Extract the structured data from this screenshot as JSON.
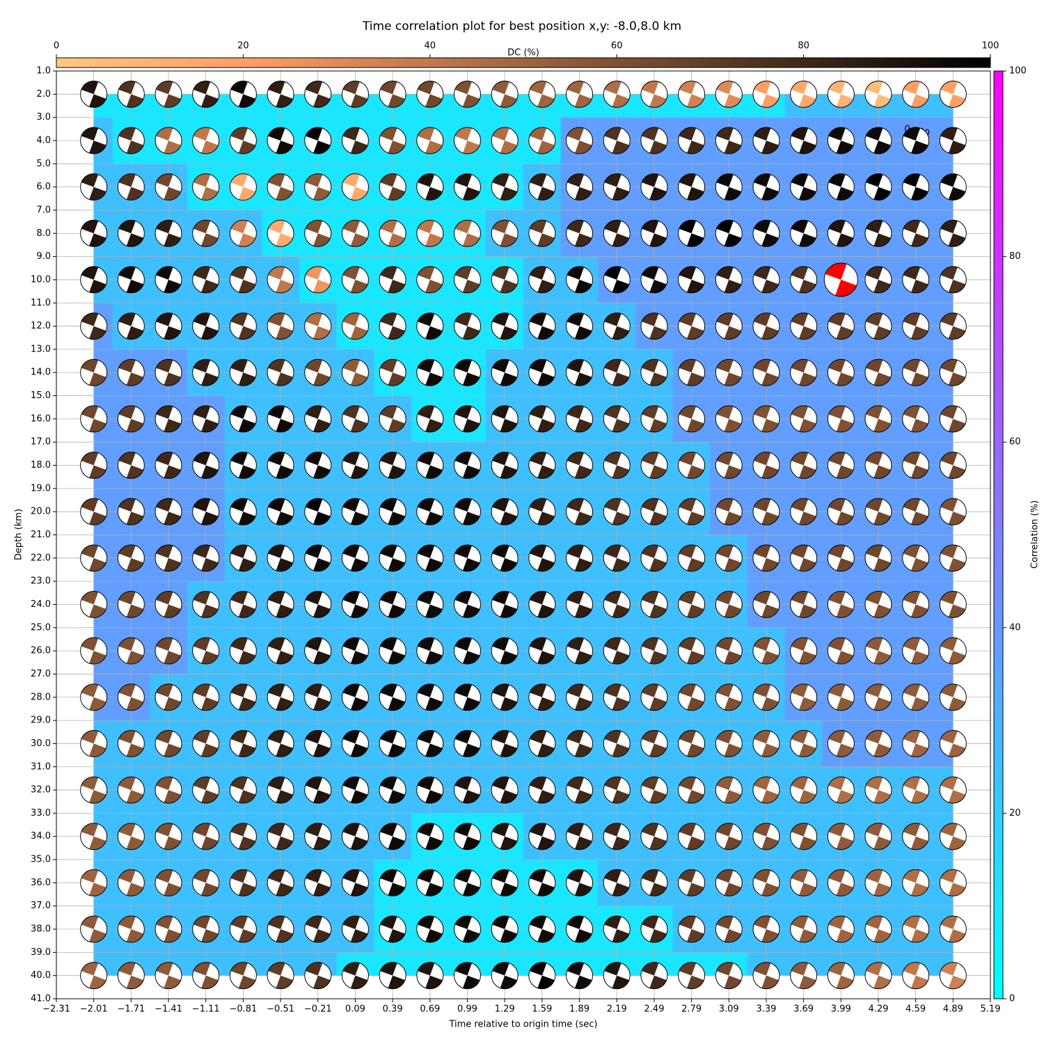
{
  "chart_data": {
    "type": "heatmap",
    "title": "Time correlation plot for best position x,y: -8.0,8.0 km",
    "xlabel": "Time relative to origin time (sec)",
    "ylabel": "Depth (km)",
    "xlim": [
      -2.31,
      5.19
    ],
    "ylim": [
      41,
      1
    ],
    "xticks": [
      {
        "value": -2.31,
        "label": "−2.31"
      },
      {
        "value": -2.01,
        "label": "−2.01"
      },
      {
        "value": -1.71,
        "label": "−1.71"
      },
      {
        "value": -1.41,
        "label": "−1.41"
      },
      {
        "value": -1.11,
        "label": "−1.11"
      },
      {
        "value": -0.81,
        "label": "−0.81"
      },
      {
        "value": -0.51,
        "label": "−0.51"
      },
      {
        "value": -0.21,
        "label": "−0.21"
      },
      0.09,
      0.39,
      0.69,
      0.99,
      1.29,
      1.59,
      1.89,
      2.19,
      2.49,
      2.79,
      3.09,
      3.39,
      3.69,
      3.99,
      4.29,
      4.59,
      4.89,
      5.19
    ],
    "yticks": [
      {
        "value": 1,
        "label": "1.0"
      },
      {
        "value": 2,
        "label": "2.0"
      },
      {
        "value": 3,
        "label": "3.0"
      },
      {
        "value": 4,
        "label": "4.0"
      },
      {
        "value": 5,
        "label": "5.0"
      },
      {
        "value": 6,
        "label": "6.0"
      },
      {
        "value": 7,
        "label": "7.0"
      },
      {
        "value": 8,
        "label": "8.0"
      },
      {
        "value": 9,
        "label": "9.0"
      },
      {
        "value": 10,
        "label": "10.0"
      },
      {
        "value": 11,
        "label": "11.0"
      },
      {
        "value": 12,
        "label": "12.0"
      },
      {
        "value": 13,
        "label": "13.0"
      },
      {
        "value": 14,
        "label": "14.0"
      },
      {
        "value": 15,
        "label": "15.0"
      },
      {
        "value": 16,
        "label": "16.0"
      },
      {
        "value": 17,
        "label": "17.0"
      },
      {
        "value": 18,
        "label": "18.0"
      },
      {
        "value": 19,
        "label": "19.0"
      },
      {
        "value": 20,
        "label": "20.0"
      },
      {
        "value": 21,
        "label": "21.0"
      },
      {
        "value": 22,
        "label": "22.0"
      },
      {
        "value": 23,
        "label": "23.0"
      },
      {
        "value": 24,
        "label": "24.0"
      },
      {
        "value": 25,
        "label": "25.0"
      },
      {
        "value": 26,
        "label": "26.0"
      },
      {
        "value": 27,
        "label": "27.0"
      },
      {
        "value": 28,
        "label": "28.0"
      },
      {
        "value": 29,
        "label": "29.0"
      },
      {
        "value": 30,
        "label": "30.0"
      },
      {
        "value": 31,
        "label": "31.0"
      },
      {
        "value": 32,
        "label": "32.0"
      },
      {
        "value": 33,
        "label": "33.0"
      },
      {
        "value": 34,
        "label": "34.0"
      },
      {
        "value": 35,
        "label": "35.0"
      },
      {
        "value": 36,
        "label": "36.0"
      },
      {
        "value": 37,
        "label": "37.0"
      },
      {
        "value": 38,
        "label": "38.0"
      },
      {
        "value": 39,
        "label": "39.0"
      },
      {
        "value": 40,
        "label": "40.0"
      },
      {
        "value": 41,
        "label": "41.0"
      }
    ],
    "grid": true,
    "times": [
      -2.01,
      -1.71,
      -1.41,
      -1.11,
      -0.81,
      -0.51,
      -0.21,
      0.09,
      0.39,
      0.69,
      0.99,
      1.29,
      1.59,
      1.89,
      2.19,
      2.49,
      2.79,
      3.09,
      3.39,
      3.69,
      3.99,
      4.29,
      4.59,
      4.89
    ],
    "depths": [
      2,
      4,
      6,
      8,
      10,
      12,
      14,
      16,
      18,
      20,
      22,
      24,
      26,
      28,
      30,
      32,
      34,
      36,
      38,
      40
    ],
    "dc_label": "DC (%)",
    "dc_lim": [
      0,
      100
    ],
    "dc_ticks": [
      0,
      20,
      40,
      60,
      80,
      100
    ],
    "dc_cmap": "copper_r",
    "correlation_label": "Correlation (%)",
    "correlation_lim": [
      0,
      100
    ],
    "correlation_ticks": [
      0,
      20,
      40,
      60,
      80,
      100
    ],
    "correlation_cmap": "cool",
    "best": {
      "time": 3.99,
      "depth": 10,
      "color": "#ff0000"
    },
    "contour_labels": [
      {
        "text": "0.200",
        "x": 4.6,
        "y": 3.6
      }
    ],
    "dc": [
      [
        90,
        75,
        70,
        85,
        95,
        85,
        80,
        70,
        65,
        65,
        60,
        55,
        50,
        50,
        45,
        40,
        35,
        30,
        20,
        15,
        10,
        5,
        20,
        20
      ],
      [
        90,
        75,
        45,
        40,
        70,
        95,
        100,
        80,
        60,
        45,
        40,
        45,
        50,
        60,
        75,
        75,
        80,
        80,
        85,
        90,
        95,
        95,
        95,
        85
      ],
      [
        85,
        75,
        65,
        45,
        15,
        60,
        55,
        15,
        70,
        90,
        90,
        85,
        85,
        85,
        85,
        90,
        90,
        95,
        95,
        95,
        95,
        100,
        100,
        95
      ],
      [
        90,
        90,
        85,
        65,
        35,
        15,
        60,
        55,
        45,
        40,
        45,
        60,
        70,
        80,
        85,
        90,
        100,
        100,
        95,
        95,
        90,
        85,
        80,
        85
      ],
      [
        90,
        95,
        95,
        80,
        75,
        40,
        25,
        60,
        80,
        60,
        70,
        75,
        85,
        95,
        100,
        95,
        90,
        85,
        80,
        75,
        80,
        80,
        80,
        75
      ],
      [
        80,
        85,
        90,
        90,
        75,
        60,
        45,
        50,
        80,
        95,
        80,
        90,
        95,
        95,
        85,
        75,
        70,
        70,
        70,
        70,
        70,
        70,
        70,
        70
      ],
      [
        65,
        70,
        75,
        85,
        85,
        75,
        65,
        55,
        70,
        95,
        95,
        95,
        95,
        90,
        80,
        75,
        70,
        65,
        65,
        65,
        65,
        65,
        65,
        65
      ],
      [
        65,
        70,
        80,
        85,
        95,
        95,
        85,
        75,
        70,
        85,
        90,
        90,
        85,
        80,
        75,
        70,
        65,
        60,
        60,
        60,
        60,
        60,
        60,
        65
      ],
      [
        70,
        75,
        80,
        90,
        95,
        95,
        95,
        90,
        90,
        95,
        95,
        90,
        85,
        80,
        75,
        70,
        65,
        65,
        65,
        65,
        65,
        65,
        65,
        65
      ],
      [
        70,
        75,
        80,
        90,
        95,
        95,
        100,
        95,
        95,
        95,
        95,
        90,
        85,
        80,
        75,
        75,
        70,
        65,
        65,
        65,
        65,
        65,
        65,
        60
      ],
      [
        65,
        70,
        75,
        80,
        85,
        90,
        95,
        95,
        95,
        95,
        95,
        95,
        90,
        85,
        80,
        75,
        70,
        65,
        65,
        65,
        65,
        65,
        60,
        60
      ],
      [
        60,
        65,
        70,
        75,
        80,
        85,
        90,
        95,
        95,
        95,
        95,
        95,
        90,
        85,
        80,
        75,
        70,
        65,
        65,
        65,
        60,
        60,
        60,
        60
      ],
      [
        60,
        60,
        65,
        70,
        80,
        85,
        90,
        95,
        95,
        95,
        95,
        95,
        90,
        85,
        80,
        75,
        70,
        65,
        60,
        60,
        60,
        55,
        55,
        55
      ],
      [
        55,
        60,
        65,
        70,
        80,
        85,
        85,
        95,
        95,
        95,
        95,
        90,
        85,
        80,
        75,
        70,
        65,
        60,
        60,
        55,
        55,
        55,
        55,
        55
      ],
      [
        55,
        60,
        65,
        70,
        80,
        85,
        90,
        95,
        95,
        95,
        95,
        90,
        85,
        80,
        75,
        70,
        65,
        60,
        55,
        55,
        55,
        55,
        50,
        50
      ],
      [
        55,
        55,
        60,
        70,
        75,
        85,
        90,
        95,
        95,
        95,
        90,
        90,
        85,
        80,
        75,
        70,
        65,
        55,
        50,
        50,
        45,
        45,
        45,
        45
      ],
      [
        55,
        55,
        60,
        65,
        75,
        80,
        85,
        90,
        95,
        95,
        95,
        90,
        90,
        85,
        80,
        75,
        70,
        65,
        60,
        60,
        55,
        55,
        55,
        50
      ],
      [
        50,
        55,
        60,
        65,
        75,
        80,
        85,
        90,
        95,
        95,
        95,
        95,
        95,
        90,
        85,
        80,
        70,
        65,
        60,
        55,
        55,
        50,
        45,
        45
      ],
      [
        55,
        55,
        60,
        65,
        70,
        75,
        80,
        85,
        90,
        95,
        95,
        95,
        95,
        95,
        85,
        80,
        70,
        65,
        60,
        55,
        50,
        50,
        45,
        45
      ],
      [
        50,
        55,
        55,
        60,
        65,
        70,
        75,
        85,
        90,
        90,
        95,
        95,
        100,
        95,
        90,
        80,
        70,
        65,
        60,
        55,
        50,
        45,
        40,
        35
      ]
    ],
    "correlation": [
      [
        10,
        10,
        10,
        10,
        10,
        10,
        10,
        10,
        10,
        10,
        10,
        10,
        10,
        10,
        10,
        10,
        10,
        10,
        10,
        25,
        25,
        25,
        25,
        25
      ],
      [
        25,
        10,
        10,
        10,
        10,
        10,
        10,
        10,
        10,
        10,
        10,
        10,
        10,
        38,
        38,
        38,
        38,
        38,
        38,
        38,
        38,
        38,
        38,
        38
      ],
      [
        25,
        25,
        25,
        10,
        10,
        10,
        10,
        10,
        10,
        10,
        10,
        10,
        25,
        38,
        38,
        38,
        38,
        38,
        38,
        38,
        38,
        38,
        38,
        38
      ],
      [
        25,
        25,
        25,
        25,
        25,
        10,
        10,
        10,
        10,
        10,
        10,
        25,
        25,
        38,
        38,
        38,
        38,
        38,
        38,
        38,
        38,
        38,
        38,
        38
      ],
      [
        25,
        25,
        25,
        25,
        25,
        25,
        10,
        10,
        10,
        10,
        10,
        10,
        25,
        25,
        38,
        38,
        38,
        38,
        38,
        38,
        38,
        38,
        38,
        38
      ],
      [
        38,
        25,
        25,
        25,
        25,
        25,
        25,
        10,
        10,
        10,
        10,
        10,
        25,
        25,
        25,
        38,
        38,
        38,
        38,
        38,
        38,
        38,
        38,
        38
      ],
      [
        38,
        38,
        38,
        25,
        25,
        25,
        25,
        25,
        10,
        10,
        10,
        25,
        25,
        25,
        25,
        25,
        38,
        38,
        38,
        38,
        38,
        38,
        38,
        38
      ],
      [
        38,
        38,
        38,
        38,
        25,
        25,
        25,
        25,
        25,
        10,
        10,
        25,
        25,
        25,
        25,
        25,
        38,
        38,
        38,
        38,
        38,
        38,
        38,
        38
      ],
      [
        38,
        38,
        38,
        38,
        25,
        25,
        25,
        25,
        25,
        25,
        25,
        25,
        25,
        25,
        25,
        25,
        25,
        38,
        38,
        38,
        38,
        38,
        38,
        38
      ],
      [
        38,
        38,
        38,
        38,
        25,
        25,
        25,
        25,
        25,
        25,
        25,
        25,
        25,
        25,
        25,
        25,
        25,
        38,
        38,
        38,
        38,
        38,
        38,
        38
      ],
      [
        38,
        38,
        38,
        38,
        25,
        25,
        25,
        25,
        25,
        25,
        25,
        25,
        25,
        25,
        25,
        25,
        25,
        25,
        38,
        38,
        38,
        38,
        38,
        38
      ],
      [
        38,
        38,
        38,
        25,
        25,
        25,
        25,
        25,
        25,
        25,
        25,
        25,
        25,
        25,
        25,
        25,
        25,
        25,
        38,
        38,
        38,
        38,
        38,
        38
      ],
      [
        38,
        38,
        38,
        25,
        25,
        25,
        25,
        25,
        25,
        25,
        25,
        25,
        25,
        25,
        25,
        25,
        25,
        25,
        25,
        38,
        38,
        38,
        38,
        38
      ],
      [
        38,
        38,
        25,
        25,
        25,
        25,
        25,
        25,
        25,
        25,
        25,
        25,
        25,
        25,
        25,
        25,
        25,
        25,
        25,
        38,
        38,
        38,
        38,
        38
      ],
      [
        25,
        25,
        25,
        25,
        25,
        25,
        25,
        25,
        25,
        25,
        25,
        25,
        25,
        25,
        25,
        25,
        25,
        25,
        25,
        25,
        38,
        38,
        38,
        38
      ],
      [
        25,
        25,
        25,
        25,
        25,
        25,
        25,
        25,
        25,
        25,
        25,
        25,
        25,
        25,
        25,
        25,
        25,
        25,
        25,
        25,
        25,
        25,
        25,
        25
      ],
      [
        25,
        25,
        25,
        25,
        25,
        25,
        25,
        25,
        25,
        10,
        10,
        10,
        25,
        25,
        25,
        25,
        25,
        25,
        25,
        25,
        25,
        25,
        25,
        25
      ],
      [
        25,
        25,
        25,
        25,
        25,
        25,
        25,
        25,
        10,
        10,
        10,
        10,
        10,
        10,
        25,
        25,
        25,
        25,
        25,
        25,
        25,
        25,
        25,
        25
      ],
      [
        25,
        25,
        25,
        25,
        25,
        25,
        25,
        25,
        10,
        10,
        10,
        10,
        10,
        10,
        10,
        10,
        25,
        25,
        25,
        25,
        25,
        25,
        25,
        25
      ],
      [
        25,
        25,
        25,
        25,
        25,
        25,
        25,
        10,
        10,
        10,
        10,
        10,
        10,
        10,
        10,
        10,
        10,
        10,
        25,
        25,
        25,
        25,
        25,
        25
      ]
    ]
  }
}
